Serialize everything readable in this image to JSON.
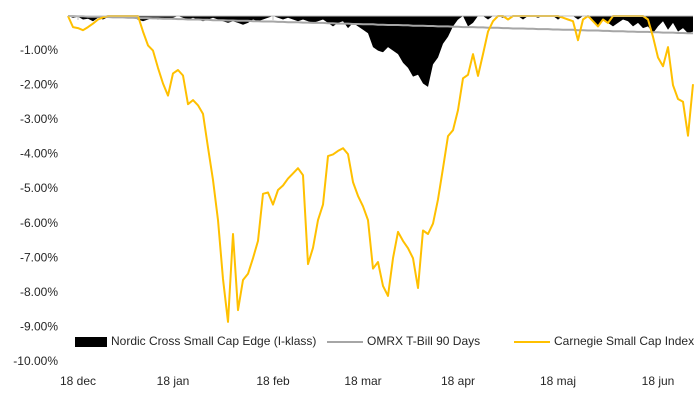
{
  "chart_data": {
    "type": "line",
    "xlim": [
      0,
      125
    ],
    "xticks": [
      {
        "value": 2,
        "label": "18 dec"
      },
      {
        "value": 21,
        "label": "18 jan"
      },
      {
        "value": 41,
        "label": "18 feb"
      },
      {
        "value": 59,
        "label": "18 mar"
      },
      {
        "value": 78,
        "label": "18 apr"
      },
      {
        "value": 98,
        "label": "18 maj"
      },
      {
        "value": 118,
        "label": "18 jun"
      }
    ],
    "ylim": [
      -10,
      0
    ],
    "yticks": [
      {
        "value": -1,
        "label": "-1.00%"
      },
      {
        "value": -2,
        "label": "-2.00%"
      },
      {
        "value": -3,
        "label": "-3.00%"
      },
      {
        "value": -4,
        "label": "-4.00%"
      },
      {
        "value": -5,
        "label": "-5.00%"
      },
      {
        "value": -6,
        "label": "-6.00%"
      },
      {
        "value": -7,
        "label": "-7.00%"
      },
      {
        "value": -8,
        "label": "-8.00%"
      },
      {
        "value": -9,
        "label": "-9.00%"
      },
      {
        "value": -10,
        "label": "-10.00%"
      }
    ],
    "legend": "bottom",
    "series": [
      {
        "name": "Nordic Cross Small Cap Edge (I-klass)",
        "color": "#000000",
        "type": "area",
        "values": [
          0,
          -0.05,
          -0.02,
          -0.1,
          -0.08,
          -0.15,
          -0.05,
          -0.1,
          -0.03,
          0,
          0,
          0,
          0,
          -0.05,
          -0.1,
          -0.15,
          -0.1,
          -0.05,
          -0.1,
          -0.05,
          -0.1,
          -0.05,
          0,
          -0.05,
          -0.1,
          -0.05,
          -0.1,
          -0.15,
          -0.1,
          -0.05,
          -0.1,
          -0.15,
          -0.2,
          -0.15,
          -0.2,
          -0.25,
          -0.2,
          -0.1,
          -0.15,
          -0.1,
          -0.05,
          0,
          -0.05,
          -0.1,
          -0.05,
          -0.1,
          -0.15,
          -0.1,
          -0.15,
          -0.2,
          -0.15,
          -0.1,
          -0.2,
          -0.3,
          -0.2,
          -0.15,
          -0.35,
          -0.2,
          -0.3,
          -0.4,
          -0.5,
          -0.9,
          -1.0,
          -1.05,
          -0.9,
          -1.0,
          -1.1,
          -1.35,
          -1.5,
          -1.75,
          -1.7,
          -1.95,
          -2.05,
          -1.4,
          -1.2,
          -0.8,
          -0.6,
          -0.3,
          -0.1,
          0,
          -0.3,
          -0.2,
          0,
          0,
          -0.1,
          0,
          0,
          -0.05,
          0,
          0,
          0,
          -0.1,
          0,
          0,
          -0.05,
          0,
          0,
          0,
          -0.1,
          0,
          0,
          0,
          -0.1,
          0,
          0,
          -0.15,
          -0.3,
          -0.1,
          -0.2,
          -0.3,
          -0.2,
          -0.1,
          -0.15,
          -0.3,
          -0.2,
          -0.35,
          -0.3,
          -0.5,
          -0.3,
          -0.15,
          -0.4,
          -0.2,
          -0.45,
          -0.35,
          -0.5,
          -0.45
        ]
      },
      {
        "name": "OMRX T-Bill 90 Days",
        "color": "#a6a6a6",
        "type": "line",
        "values": [
          0,
          0,
          -0.01,
          -0.01,
          -0.02,
          -0.02,
          -0.02,
          -0.03,
          -0.03,
          -0.04,
          -0.04,
          -0.04,
          -0.05,
          -0.05,
          -0.06,
          -0.06,
          -0.06,
          -0.07,
          -0.07,
          -0.08,
          -0.08,
          -0.08,
          -0.09,
          -0.09,
          -0.1,
          -0.1,
          -0.1,
          -0.11,
          -0.11,
          -0.12,
          -0.12,
          -0.12,
          -0.13,
          -0.13,
          -0.14,
          -0.14,
          -0.14,
          -0.15,
          -0.15,
          -0.16,
          -0.16,
          -0.16,
          -0.17,
          -0.17,
          -0.18,
          -0.18,
          -0.18,
          -0.19,
          -0.19,
          -0.2,
          -0.2,
          -0.2,
          -0.21,
          -0.21,
          -0.22,
          -0.22,
          -0.22,
          -0.23,
          -0.23,
          -0.24,
          -0.24,
          -0.24,
          -0.25,
          -0.25,
          -0.26,
          -0.26,
          -0.26,
          -0.27,
          -0.27,
          -0.28,
          -0.28,
          -0.28,
          -0.29,
          -0.29,
          -0.3,
          -0.3,
          -0.3,
          -0.31,
          -0.31,
          -0.32,
          -0.32,
          -0.32,
          -0.33,
          -0.33,
          -0.34,
          -0.34,
          -0.34,
          -0.35,
          -0.35,
          -0.36,
          -0.36,
          -0.36,
          -0.37,
          -0.37,
          -0.38,
          -0.38,
          -0.38,
          -0.39,
          -0.39,
          -0.4,
          -0.4,
          -0.4,
          -0.41,
          -0.41,
          -0.42,
          -0.42,
          -0.42,
          -0.43,
          -0.43,
          -0.44,
          -0.44,
          -0.44,
          -0.45,
          -0.45,
          -0.46,
          -0.46,
          -0.46,
          -0.47,
          -0.47,
          -0.48,
          -0.48,
          -0.48,
          -0.49,
          -0.49,
          -0.5,
          -0.5
        ]
      },
      {
        "name": "Carnegie Small Cap Index",
        "color": "#ffc000",
        "type": "line",
        "values": [
          0,
          -0.32,
          -0.35,
          -0.41,
          -0.32,
          -0.22,
          -0.1,
          -0.04,
          0,
          0,
          0,
          0,
          0,
          0,
          0,
          -0.45,
          -0.85,
          -1.0,
          -1.5,
          -1.95,
          -2.3,
          -1.66,
          -1.56,
          -1.72,
          -2.55,
          -2.43,
          -2.58,
          -2.83,
          -3.8,
          -4.74,
          -5.9,
          -7.6,
          -8.84,
          -6.3,
          -8.5,
          -7.63,
          -7.45,
          -7.0,
          -6.5,
          -5.14,
          -5.1,
          -5.45,
          -5.03,
          -4.9,
          -4.7,
          -4.55,
          -4.4,
          -4.6,
          -7.17,
          -6.7,
          -5.9,
          -5.45,
          -4.05,
          -4.0,
          -3.9,
          -3.82,
          -3.99,
          -4.8,
          -5.2,
          -5.5,
          -5.9,
          -7.3,
          -7.11,
          -7.8,
          -8.09,
          -7.0,
          -6.24,
          -6.5,
          -6.71,
          -7.0,
          -7.86,
          -6.2,
          -6.3,
          -6.0,
          -5.3,
          -4.4,
          -3.47,
          -3.3,
          -2.72,
          -1.8,
          -1.7,
          -1.1,
          -1.73,
          -1.1,
          -0.45,
          -0.15,
          0,
          0,
          -0.1,
          0,
          0,
          0,
          0,
          0,
          0,
          0,
          0,
          0,
          0,
          -0.05,
          -0.1,
          -0.15,
          -0.7,
          -0.1,
          0,
          -0.15,
          -0.3,
          -0.1,
          -0.2,
          0,
          0,
          0,
          0,
          0,
          0,
          0,
          -0.1,
          -0.6,
          -1.2,
          -1.45,
          -0.9,
          -2.0,
          -2.4,
          -2.48,
          -3.46,
          -1.97
        ]
      }
    ]
  }
}
